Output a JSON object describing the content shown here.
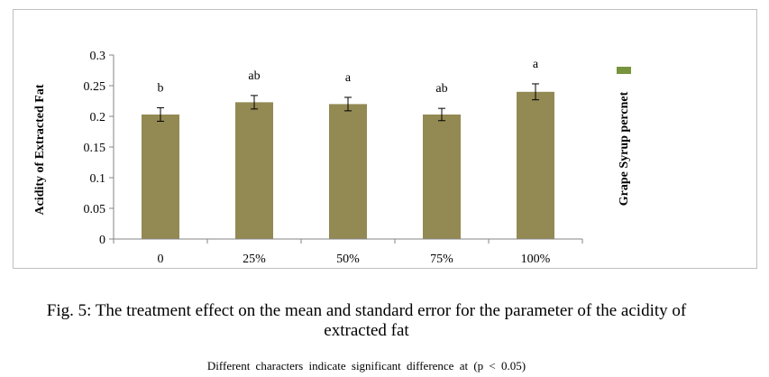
{
  "chart_data": {
    "type": "bar",
    "categories": [
      "0",
      "25%",
      "50%",
      "75%",
      "100%"
    ],
    "values": [
      0.203,
      0.223,
      0.22,
      0.203,
      0.24
    ],
    "errors": [
      0.011,
      0.011,
      0.011,
      0.01,
      0.013
    ],
    "letters": [
      "b",
      "ab",
      "a",
      "ab",
      "a"
    ],
    "ylabel": "Acidity of Extracted Fat",
    "ylim": [
      0,
      0.3
    ],
    "yticks": [
      "0",
      "0.05",
      "0.1",
      "0.15",
      "0.2",
      "0.25",
      "0.3"
    ],
    "legend": {
      "placement": "right",
      "entries": [
        "Grape Syrup percnet"
      ]
    },
    "bar_color": "#938953",
    "legend_color": "#77933c",
    "grid": false
  },
  "caption": {
    "line1": "Fig. 5: The treatment effect on the mean and standard error for the parameter of the acidity of",
    "line2": "extracted fat"
  },
  "footnote": "Different characters indicate significant difference at (p < 0.05)"
}
